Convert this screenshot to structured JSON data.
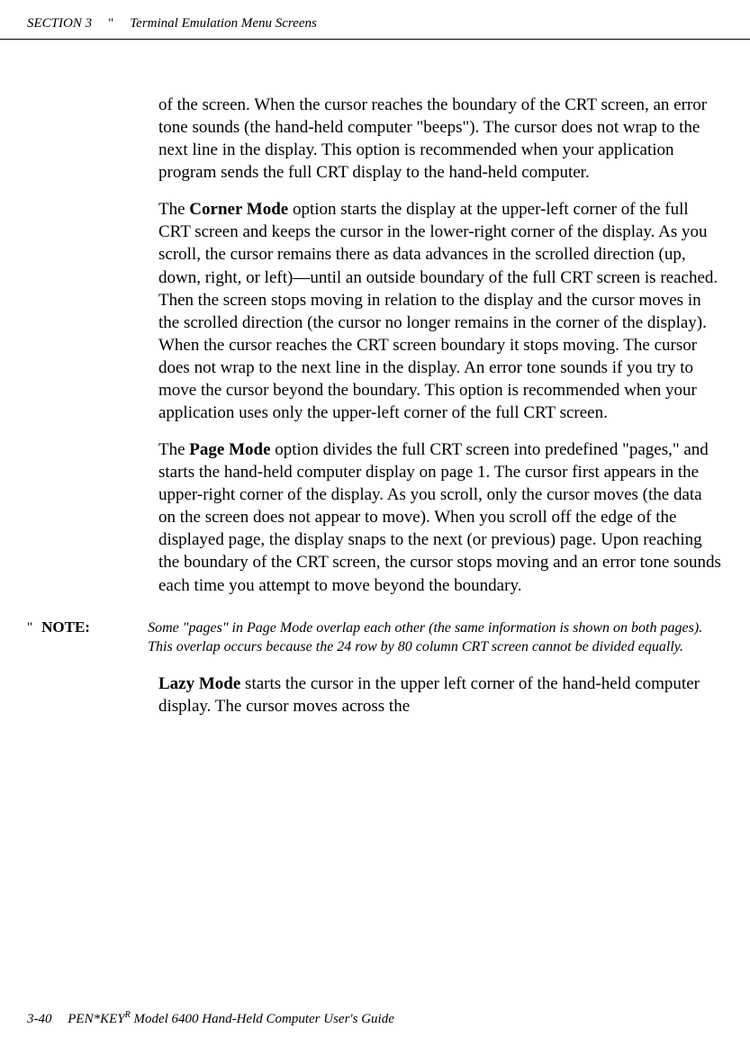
{
  "header": {
    "section": "SECTION 3",
    "bullet": "\"",
    "title": "Terminal Emulation Menu Screens"
  },
  "paragraphs": {
    "p1": "of the screen.  When the cursor reaches the boundary of the CRT screen, an error tone sounds (the hand-held computer \"beeps\").  The cursor does not wrap to the next line in the display.  This option is recommended when your application program sends the full CRT display to the hand-held computer.",
    "p2_prefix": "The ",
    "p2_bold": "Corner Mode",
    "p2_suffix": " option starts the display at the upper-left corner of the full CRT screen and keeps the cursor in the lower-right corner of the display.  As you scroll, the cursor remains there as data advances in the scrolled direction (up, down, right, or left)—until an outside boundary of the full CRT screen is reached.  Then the screen stops moving in relation to the display and the cursor moves in the scrolled direction (the cursor no longer remains in the corner of the display).  When the cursor reaches the CRT screen boundary it stops moving.  The cursor does not wrap to the next line in the display.  An error tone sounds if you try to move the cursor beyond the boundary.  This option is recommended when your application uses only the upper-left corner of the full CRT screen.",
    "p3_prefix": "The ",
    "p3_bold": "Page Mode",
    "p3_suffix": " option divides the full CRT screen into predefined \"pages,\" and starts the hand-held computer display on page 1.  The cursor first appears in the upper-right corner of the display.  As you scroll, only the cursor moves (the data on the screen does not appear to move).  When you scroll off the edge of the displayed page, the display snaps to the next (or previous) page.  Upon reaching the boundary of the CRT screen, the cursor stops moving and an error tone sounds each time you attempt to move beyond the boundary.",
    "p4_bold": "Lazy Mode",
    "p4_suffix": " starts the cursor in the upper left corner of the hand-held computer display.  The cursor moves across the"
  },
  "note": {
    "bullet": "\"",
    "label": "NOTE:",
    "text": "Some \"pages\" in Page Mode overlap each other (the same information is shown on both pages).  This overlap occurs because the 24 row by 80 column CRT screen cannot be divided equally."
  },
  "footer": {
    "page": "3-40",
    "text_prefix": "PEN*KEY",
    "text_sup": "R",
    "text_suffix": " Model 6400 Hand-Held Computer User's Guide"
  }
}
